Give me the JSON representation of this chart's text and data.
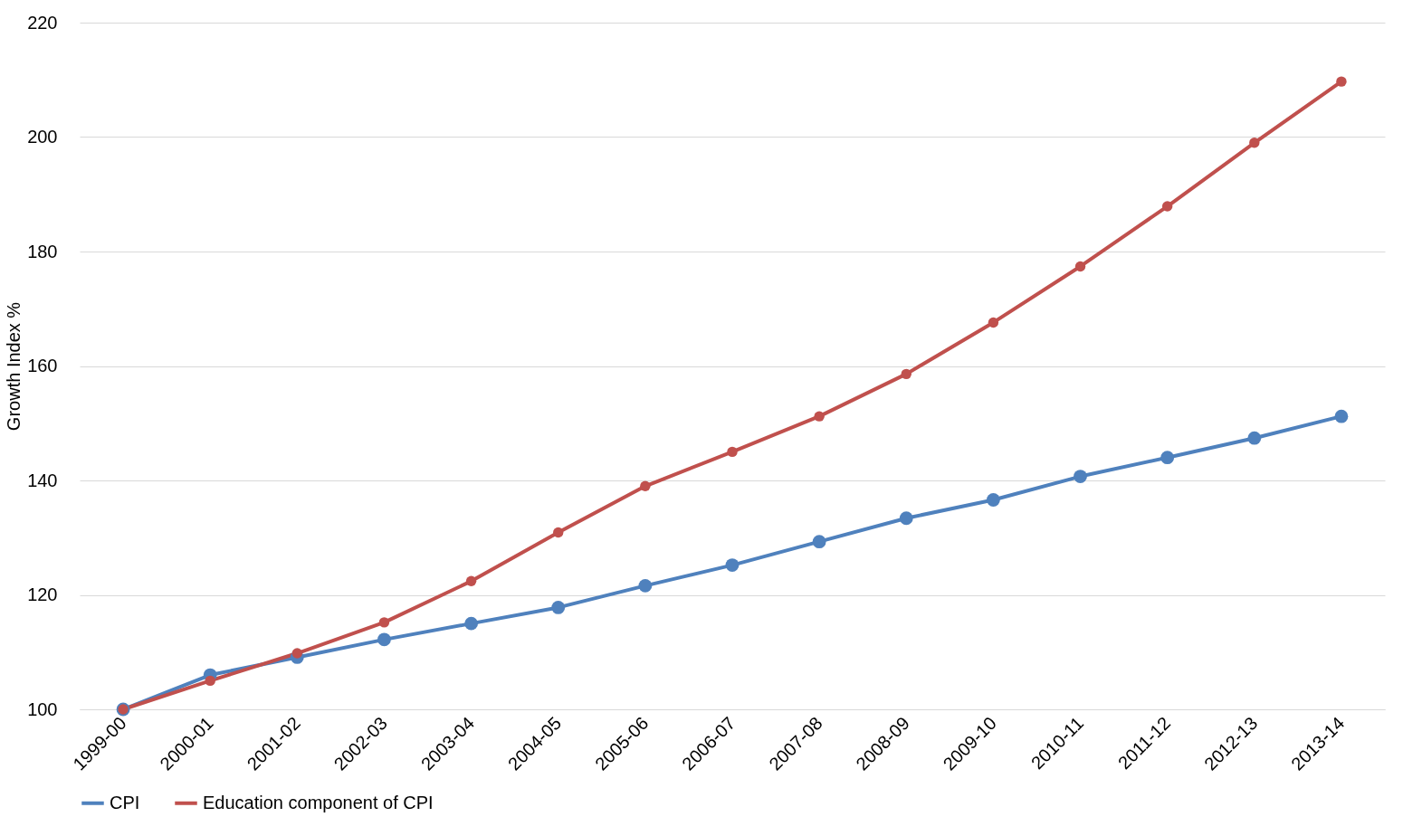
{
  "chart_data": {
    "type": "line",
    "ylabel": "Growth Index %",
    "categories": [
      "1999-00",
      "2000-01",
      "2001-02",
      "2002-03",
      "2003-04",
      "2004-05",
      "2005-06",
      "2006-07",
      "2007-08",
      "2008-09",
      "2009-10",
      "2010-11",
      "2011-12",
      "2012-13",
      "2013-14"
    ],
    "series": [
      {
        "name": "CPI",
        "color": "#4f81bd",
        "values": [
          100,
          106,
          109.1,
          112.2,
          115,
          117.8,
          121.6,
          125.2,
          129.3,
          133.4,
          136.6,
          140.7,
          144,
          147.4,
          151.2
        ]
      },
      {
        "name": "Education component of CPI",
        "color": "#c0504d",
        "values": [
          100,
          105,
          109.8,
          115.2,
          122.4,
          130.9,
          139,
          145,
          151.2,
          158.6,
          167.6,
          177.4,
          187.9,
          199,
          209.7
        ]
      }
    ],
    "ylim": [
      100,
      220
    ],
    "yticks": [
      100,
      120,
      140,
      160,
      180,
      200,
      220
    ],
    "grid": "y",
    "legend": "bottom",
    "marker": "circle",
    "line_style": "solid"
  }
}
